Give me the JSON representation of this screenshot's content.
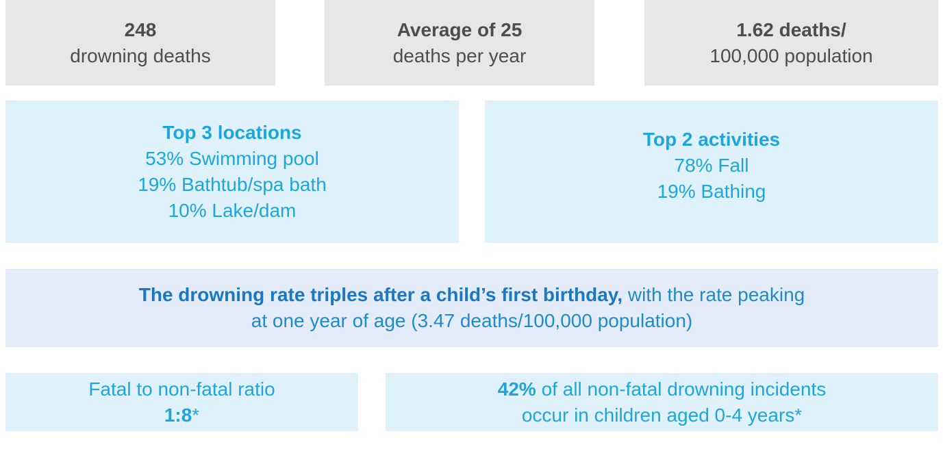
{
  "stats": [
    {
      "headline": "248",
      "text": "drowning deaths"
    },
    {
      "headline": "Average of 25",
      "text": "deaths per year"
    },
    {
      "headline": "1.62 deaths/",
      "text": "100,000 population"
    }
  ],
  "locations": {
    "title": "Top 3 locations",
    "items": [
      "53% Swimming pool",
      "19% Bathtub/spa bath",
      "10% Lake/dam"
    ]
  },
  "activities": {
    "title": "Top 2 activities",
    "items": [
      "78% Fall",
      "19% Bathing"
    ]
  },
  "highlight": {
    "bold": "The drowning rate triples after a child’s first birthday,",
    "line1": "with the rate peaking",
    "line2": "at one year of age (3.47 deaths/100,000 population)"
  },
  "ratio": {
    "text": "Fatal to non-fatal ratio",
    "value": "1:8",
    "note": "*"
  },
  "nonfatal": {
    "value": "42%",
    "line1": "of all non-fatal drowning incidents",
    "line2": "occur in children aged 0-4 years*"
  }
}
